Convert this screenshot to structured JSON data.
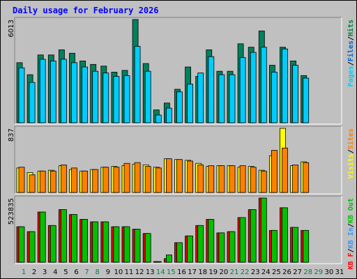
{
  "title": "Daily usage for February 2026",
  "chart_data": {
    "type": "bar",
    "title": "Daily usage for February 2026",
    "days": [
      "1",
      "2",
      "3",
      "4",
      "5",
      "6",
      "7",
      "8",
      "9",
      "10",
      "11",
      "12",
      "13",
      "14",
      "15",
      "16",
      "17",
      "18",
      "19",
      "20",
      "21",
      "22",
      "23",
      "24",
      "25",
      "26",
      "27",
      "28",
      "29",
      "30",
      "31"
    ],
    "weekend_days": [
      "1",
      "7",
      "8",
      "14",
      "15",
      "21",
      "22",
      "28",
      "29"
    ],
    "panels": [
      {
        "id": "hits",
        "y_max_label": "6013",
        "ylim": [
          0,
          6013
        ],
        "legend": [
          {
            "text": "Pages",
            "color": "#00ccff"
          },
          {
            "text": "Files",
            "color": "#0066cc"
          },
          {
            "text": "Hits",
            "color": "#008040"
          }
        ],
        "series": [
          {
            "name": "Hits",
            "color": "#00805c",
            "values": [
              3500,
              2800,
              3950,
              3950,
              4250,
              4050,
              3600,
              3400,
              3300,
              2950,
              3050,
              6013,
              3450,
              750,
              1150,
              1950,
              3250,
              2700,
              4250,
              3000,
              3000,
              4600,
              4400,
              5350,
              3350,
              4400,
              3600,
              2750,
              0,
              0,
              0
            ]
          },
          {
            "name": "Pages",
            "color": "#00ccff",
            "values": [
              3200,
              2350,
              3700,
              3600,
              3700,
              3500,
              3250,
              3000,
              2900,
              2700,
              2750,
              4450,
              3000,
              450,
              850,
              1800,
              2250,
              2900,
              3850,
              2800,
              2800,
              3800,
              4100,
              4400,
              2950,
              4300,
              3350,
              2600,
              0,
              0,
              0
            ]
          }
        ]
      },
      {
        "id": "sites",
        "y_max_label": "837",
        "ylim": [
          0,
          837
        ],
        "legend": [
          {
            "text": "Visits",
            "color": "#ffff00"
          },
          {
            "text": "Sites",
            "color": "#ff8000"
          }
        ],
        "series": [
          {
            "name": "Visits",
            "color": "#ffff00",
            "values": [
              320,
              260,
              280,
              290,
              350,
              300,
              280,
              300,
              330,
              340,
              350,
              370,
              360,
              330,
              440,
              430,
              420,
              380,
              340,
              350,
              350,
              330,
              340,
              290,
              480,
              837,
              350,
              400,
              0,
              0,
              0
            ]
          },
          {
            "name": "Sites",
            "color": "#ff8000",
            "values": [
              330,
              230,
              280,
              280,
              360,
              320,
              280,
              300,
              330,
              330,
              380,
              390,
              340,
              320,
              440,
              430,
              410,
              360,
              350,
              350,
              350,
              350,
              330,
              280,
              550,
              580,
              360,
              390,
              0,
              0,
              0
            ]
          }
        ]
      },
      {
        "id": "kbytes",
        "y_max_label": "523835",
        "ylim": [
          0,
          523835
        ],
        "legend": [
          {
            "text": "KB F",
            "color": "#ff0000"
          },
          {
            "text": "KB In",
            "color": "#3399ff"
          },
          {
            "text": "KB Out",
            "color": "#00c000"
          }
        ],
        "series": [
          {
            "name": "KB F",
            "color": "#e60000",
            "values": [
              290000,
              250000,
              410000,
              300000,
              430000,
              390000,
              350000,
              330000,
              330000,
              290000,
              290000,
              270000,
              235000,
              5000,
              30000,
              160000,
              215000,
              300000,
              350000,
              240000,
              250000,
              365000,
              430000,
              523835,
              260000,
              445000,
              285000,
              260000,
              0,
              0,
              0
            ]
          },
          {
            "name": "KB Out",
            "color": "#00c000",
            "values": [
              290000,
              250000,
              410000,
              300000,
              430000,
              390000,
              350000,
              330000,
              330000,
              290000,
              290000,
              270000,
              235000,
              5000,
              60000,
              160000,
              215000,
              300000,
              350000,
              240000,
              250000,
              365000,
              430000,
              523835,
              260000,
              445000,
              285000,
              260000,
              0,
              0,
              0
            ]
          }
        ]
      }
    ]
  }
}
